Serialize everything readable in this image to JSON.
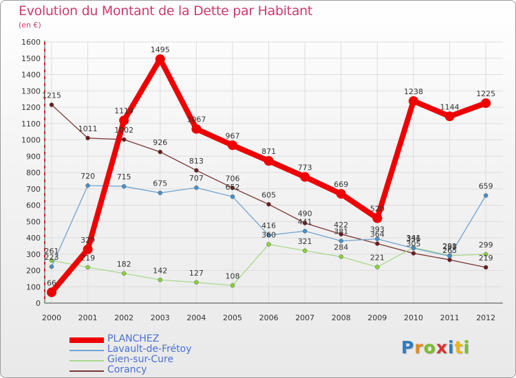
{
  "title": "Evolution du Montant de la Dette par Habitant",
  "subtitle": "(en €)",
  "logo": [
    "P",
    "r",
    "o",
    "x",
    "i",
    "t",
    "i"
  ],
  "chart_data": {
    "type": "line",
    "title": "Evolution du Montant de la Dette par Habitant",
    "ylabel": "(en €)",
    "xlabel": "",
    "x": [
      "2000",
      "2001",
      "2002",
      "2003",
      "2004",
      "2005",
      "2006",
      "2007",
      "2008",
      "2009",
      "2010",
      "2011",
      "2012"
    ],
    "ylim": [
      0,
      1600
    ],
    "yticks": [
      0,
      100,
      200,
      300,
      400,
      500,
      600,
      700,
      800,
      900,
      1000,
      1100,
      1200,
      1300,
      1400,
      1500,
      1600
    ],
    "grid": true,
    "legend_placement": "bottom-left",
    "series": [
      {
        "name": "PLANCHEZ",
        "color": "#ee0000",
        "line_color": "#ee0000",
        "values": [
          66,
          329,
          1119,
          1495,
          1067,
          967,
          871,
          773,
          669,
          520,
          1238,
          1144,
          1225
        ]
      },
      {
        "name": "Lavault-de-Frétoy",
        "color": "#4a90c8",
        "line_color": "#6fa3cf",
        "values": [
          223,
          720,
          715,
          675,
          707,
          652,
          416,
          441,
          381,
          393,
          336,
          288,
          659
        ]
      },
      {
        "name": "Gien-sur-Cure",
        "color": "#8bd13e",
        "line_color": "#a9d98b",
        "values": [
          261,
          219,
          182,
          142,
          127,
          108,
          360,
          321,
          284,
          221,
          341,
          291,
          299
        ]
      },
      {
        "name": "Corancy",
        "color": "#6b1c1c",
        "line_color": "#7a3535",
        "values": [
          1215,
          1011,
          1002,
          926,
          813,
          706,
          605,
          490,
          422,
          364,
          305,
          265,
          219
        ]
      }
    ]
  }
}
